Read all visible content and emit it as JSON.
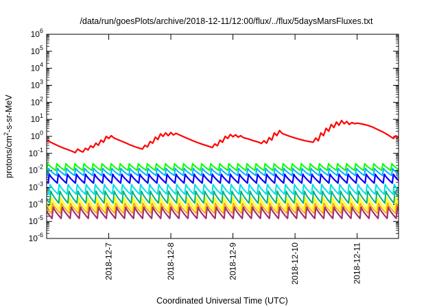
{
  "chart_data": {
    "type": "line",
    "title": "/data/run/goesPlots/archive/2018-12-11/12:00/flux/../flux/5daysMarsFluxes.txt",
    "xlabel": "Coordinated Universal Time (UTC)",
    "ylabel": {
      "base": "protons/cm",
      "sup": "2",
      "rest": "-s-sr-MeV"
    },
    "y_scale": "log",
    "ylim": [
      1e-06,
      1000000.0
    ],
    "xlim": [
      "2018-12-06 00:00",
      "2018-12-11 16:00"
    ],
    "grid": false,
    "legend": "none",
    "y_ticks": [
      {
        "value": 1e-06,
        "base": "10",
        "sup": "-6"
      },
      {
        "value": 1e-05,
        "base": "10",
        "sup": "-5"
      },
      {
        "value": 0.0001,
        "base": "10",
        "sup": "-4"
      },
      {
        "value": 0.001,
        "base": "10",
        "sup": "-3"
      },
      {
        "value": 0.01,
        "base": "10",
        "sup": "-2"
      },
      {
        "value": 0.1,
        "base": "10",
        "sup": "-1"
      },
      {
        "value": 1.0,
        "base": "10",
        "sup": "0"
      },
      {
        "value": 10.0,
        "base": "10",
        "sup": "1"
      },
      {
        "value": 100.0,
        "base": "10",
        "sup": "2"
      },
      {
        "value": 1000.0,
        "base": "10",
        "sup": "3"
      },
      {
        "value": 10000.0,
        "base": "10",
        "sup": "4"
      },
      {
        "value": 100000.0,
        "base": "10",
        "sup": "5"
      },
      {
        "value": 1000000.0,
        "base": "10",
        "sup": "6"
      }
    ],
    "x_ticks": [
      {
        "value": "2018-12-07 00:00",
        "label": "2018-12-7"
      },
      {
        "value": "2018-12-08 00:00",
        "label": "2018-12-8"
      },
      {
        "value": "2018-12-09 00:00",
        "label": "2018-12-9"
      },
      {
        "value": "2018-12-10 00:00",
        "label": "2018-12-10"
      },
      {
        "value": "2018-12-11 00:00",
        "label": "2018-12-11"
      }
    ],
    "series": [
      {
        "color": "#ff0000",
        "width": 2.2,
        "style": "line",
        "points": [
          [
            "2018-12-06 00:00",
            0.6
          ],
          [
            "2018-12-06 02:00",
            0.42
          ],
          [
            "2018-12-06 04:00",
            0.3
          ],
          [
            "2018-12-06 06:00",
            0.22
          ],
          [
            "2018-12-06 08:00",
            0.17
          ],
          [
            "2018-12-06 10:00",
            0.13
          ],
          [
            "2018-12-06 11:00",
            0.11
          ],
          [
            "2018-12-06 12:00",
            0.18
          ],
          [
            "2018-12-06 13:00",
            0.14
          ],
          [
            "2018-12-06 14:00",
            0.12
          ],
          [
            "2018-12-06 15:00",
            0.2
          ],
          [
            "2018-12-06 16:00",
            0.16
          ],
          [
            "2018-12-06 17:00",
            0.28
          ],
          [
            "2018-12-06 18:00",
            0.22
          ],
          [
            "2018-12-06 19:00",
            0.4
          ],
          [
            "2018-12-06 20:00",
            0.3
          ],
          [
            "2018-12-06 21:00",
            0.6
          ],
          [
            "2018-12-06 22:00",
            0.45
          ],
          [
            "2018-12-06 23:00",
            1.0
          ],
          [
            "2018-12-07 00:00",
            0.75
          ],
          [
            "2018-12-07 01:00",
            1.1
          ],
          [
            "2018-12-07 02:00",
            0.8
          ],
          [
            "2018-12-07 04:00",
            0.6
          ],
          [
            "2018-12-07 06:00",
            0.45
          ],
          [
            "2018-12-07 08:00",
            0.33
          ],
          [
            "2018-12-07 10:00",
            0.25
          ],
          [
            "2018-12-07 12:00",
            0.2
          ],
          [
            "2018-12-07 13:00",
            0.18
          ],
          [
            "2018-12-07 14:00",
            0.3
          ],
          [
            "2018-12-07 15:00",
            0.24
          ],
          [
            "2018-12-07 16:00",
            0.5
          ],
          [
            "2018-12-07 17:00",
            0.4
          ],
          [
            "2018-12-07 18:00",
            0.9
          ],
          [
            "2018-12-07 19:00",
            0.65
          ],
          [
            "2018-12-07 20:00",
            1.4
          ],
          [
            "2018-12-07 21:00",
            1.0
          ],
          [
            "2018-12-07 22:00",
            1.6
          ],
          [
            "2018-12-07 23:00",
            1.1
          ],
          [
            "2018-12-08 00:00",
            1.7
          ],
          [
            "2018-12-08 01:00",
            1.2
          ],
          [
            "2018-12-08 02:00",
            1.5
          ],
          [
            "2018-12-08 04:00",
            1.1
          ],
          [
            "2018-12-08 06:00",
            0.8
          ],
          [
            "2018-12-08 08:00",
            0.6
          ],
          [
            "2018-12-08 10:00",
            0.45
          ],
          [
            "2018-12-08 12:00",
            0.35
          ],
          [
            "2018-12-08 14:00",
            0.28
          ],
          [
            "2018-12-08 16:00",
            0.22
          ],
          [
            "2018-12-08 17:00",
            0.36
          ],
          [
            "2018-12-08 18:00",
            0.28
          ],
          [
            "2018-12-08 19:00",
            0.6
          ],
          [
            "2018-12-08 20:00",
            0.45
          ],
          [
            "2018-12-08 21:00",
            1.0
          ],
          [
            "2018-12-08 22:00",
            0.75
          ],
          [
            "2018-12-08 23:00",
            1.3
          ],
          [
            "2018-12-09 00:00",
            0.95
          ],
          [
            "2018-12-09 01:00",
            1.25
          ],
          [
            "2018-12-09 02:00",
            0.9
          ],
          [
            "2018-12-09 03:00",
            1.1
          ],
          [
            "2018-12-09 04:00",
            0.85
          ],
          [
            "2018-12-09 06:00",
            0.7
          ],
          [
            "2018-12-09 08:00",
            0.55
          ],
          [
            "2018-12-09 10:00",
            0.45
          ],
          [
            "2018-12-09 11:00",
            0.38
          ],
          [
            "2018-12-09 12:00",
            0.55
          ],
          [
            "2018-12-09 13:00",
            0.4
          ],
          [
            "2018-12-09 14:00",
            0.85
          ],
          [
            "2018-12-09 15:00",
            0.6
          ],
          [
            "2018-12-09 16:00",
            1.6
          ],
          [
            "2018-12-09 17:00",
            1.1
          ],
          [
            "2018-12-09 18:00",
            2.2
          ],
          [
            "2018-12-09 19:00",
            1.5
          ],
          [
            "2018-12-09 20:00",
            1.3
          ],
          [
            "2018-12-09 22:00",
            1.0
          ],
          [
            "2018-12-10 00:00",
            0.8
          ],
          [
            "2018-12-10 02:00",
            0.65
          ],
          [
            "2018-12-10 04:00",
            0.55
          ],
          [
            "2018-12-10 06:00",
            0.48
          ],
          [
            "2018-12-10 07:00",
            0.45
          ],
          [
            "2018-12-10 08:00",
            0.8
          ],
          [
            "2018-12-10 09:00",
            0.55
          ],
          [
            "2018-12-10 10:00",
            1.6
          ],
          [
            "2018-12-10 11:00",
            1.1
          ],
          [
            "2018-12-10 12:00",
            3.0
          ],
          [
            "2018-12-10 13:00",
            2.0
          ],
          [
            "2018-12-10 14:00",
            5.0
          ],
          [
            "2018-12-10 15:00",
            3.3
          ],
          [
            "2018-12-10 16:00",
            7.0
          ],
          [
            "2018-12-10 17:00",
            4.5
          ],
          [
            "2018-12-10 18:00",
            8.5
          ],
          [
            "2018-12-10 19:00",
            5.5
          ],
          [
            "2018-12-10 20:00",
            7.5
          ],
          [
            "2018-12-10 21:00",
            5.0
          ],
          [
            "2018-12-10 22:00",
            6.5
          ],
          [
            "2018-12-10 23:00",
            5.5
          ],
          [
            "2018-12-11 00:00",
            6.0
          ],
          [
            "2018-12-11 02:00",
            5.3
          ],
          [
            "2018-12-11 04:00",
            4.5
          ],
          [
            "2018-12-11 06:00",
            3.5
          ],
          [
            "2018-12-11 08:00",
            2.5
          ],
          [
            "2018-12-11 10:00",
            1.8
          ],
          [
            "2018-12-11 12:00",
            1.2
          ],
          [
            "2018-12-11 13:00",
            0.95
          ],
          [
            "2018-12-11 14:00",
            0.75
          ],
          [
            "2018-12-11 15:00",
            1.1
          ],
          [
            "2018-12-11 16:00",
            0.85
          ]
        ]
      },
      {
        "color": "#00ff00",
        "width": 2.0,
        "style": "sawtooth",
        "peak": 0.025,
        "trough": 0.01,
        "period_hours": 3.5,
        "phase_hours": 0.0
      },
      {
        "color": "#00b0ff",
        "width": 2.0,
        "style": "sawtooth",
        "peak": 0.013,
        "trough": 0.005,
        "period_hours": 3.5,
        "phase_hours": 0.3
      },
      {
        "color": "#0000ff",
        "width": 2.2,
        "style": "sawtooth",
        "peak": 0.006,
        "trough": 0.0018,
        "period_hours": 3.5,
        "phase_hours": 0.6
      },
      {
        "color": "#00e0e0",
        "width": 2.0,
        "style": "sawtooth",
        "peak": 0.0015,
        "trough": 0.0004,
        "period_hours": 3.5,
        "phase_hours": 0.9
      },
      {
        "color": "#00b080",
        "width": 2.0,
        "style": "sawtooth",
        "peak": 0.0006,
        "trough": 0.00012,
        "period_hours": 3.5,
        "phase_hours": 1.2
      },
      {
        "color": "#ffff00",
        "width": 2.0,
        "style": "sawtooth",
        "peak": 0.00025,
        "trough": 5e-05,
        "period_hours": 3.5,
        "phase_hours": 1.5
      },
      {
        "color": "#ffa000",
        "width": 1.8,
        "style": "sawtooth",
        "peak": 0.00012,
        "trough": 3e-05,
        "period_hours": 3.5,
        "phase_hours": 1.8
      },
      {
        "color": "#a03070",
        "width": 2.2,
        "style": "sawtooth",
        "peak": 7e-05,
        "trough": 1.5e-05,
        "period_hours": 3.5,
        "phase_hours": 2.1
      }
    ]
  }
}
